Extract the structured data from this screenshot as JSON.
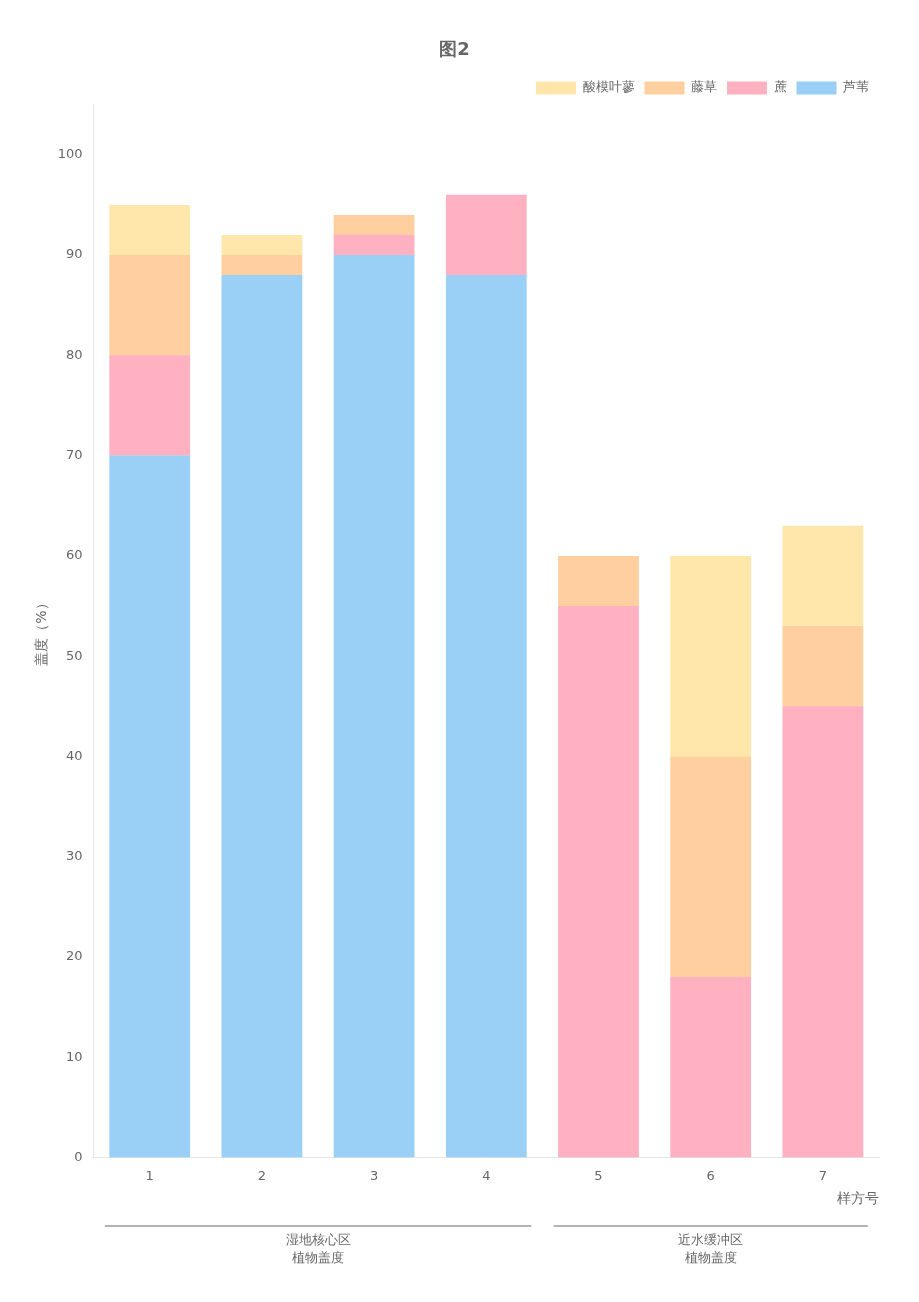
{
  "chart_data": {
    "type": "bar",
    "stacked": true,
    "title": "图2",
    "xlabel": "样方号",
    "ylabel": "盖度（%）",
    "categories": [
      1,
      2,
      3,
      4,
      5,
      6,
      7
    ],
    "series": [
      {
        "name": "芦苇",
        "values": [
          70,
          88,
          90,
          88,
          0,
          0,
          0
        ]
      },
      {
        "name": "蔗",
        "values": [
          10,
          0,
          2,
          8,
          55,
          18,
          45
        ]
      },
      {
        "name": "藤草",
        "values": [
          10,
          2,
          2,
          0,
          5,
          22,
          8
        ]
      },
      {
        "name": "酸模叶蓼",
        "values": [
          5,
          2,
          0,
          0,
          0,
          20,
          10
        ]
      }
    ],
    "ylim": [
      0,
      105
    ],
    "yticks": [
      0,
      10,
      20,
      30,
      40,
      50,
      60,
      70,
      80,
      90,
      100
    ],
    "grid": false,
    "legend": "upper right",
    "annotations": [
      {
        "text": "湿地核心区\n植物盖度",
        "from": 1,
        "to": 4
      },
      {
        "text": "近水缓冲区\n植物盖度",
        "from": 5,
        "to": 7
      }
    ]
  }
}
